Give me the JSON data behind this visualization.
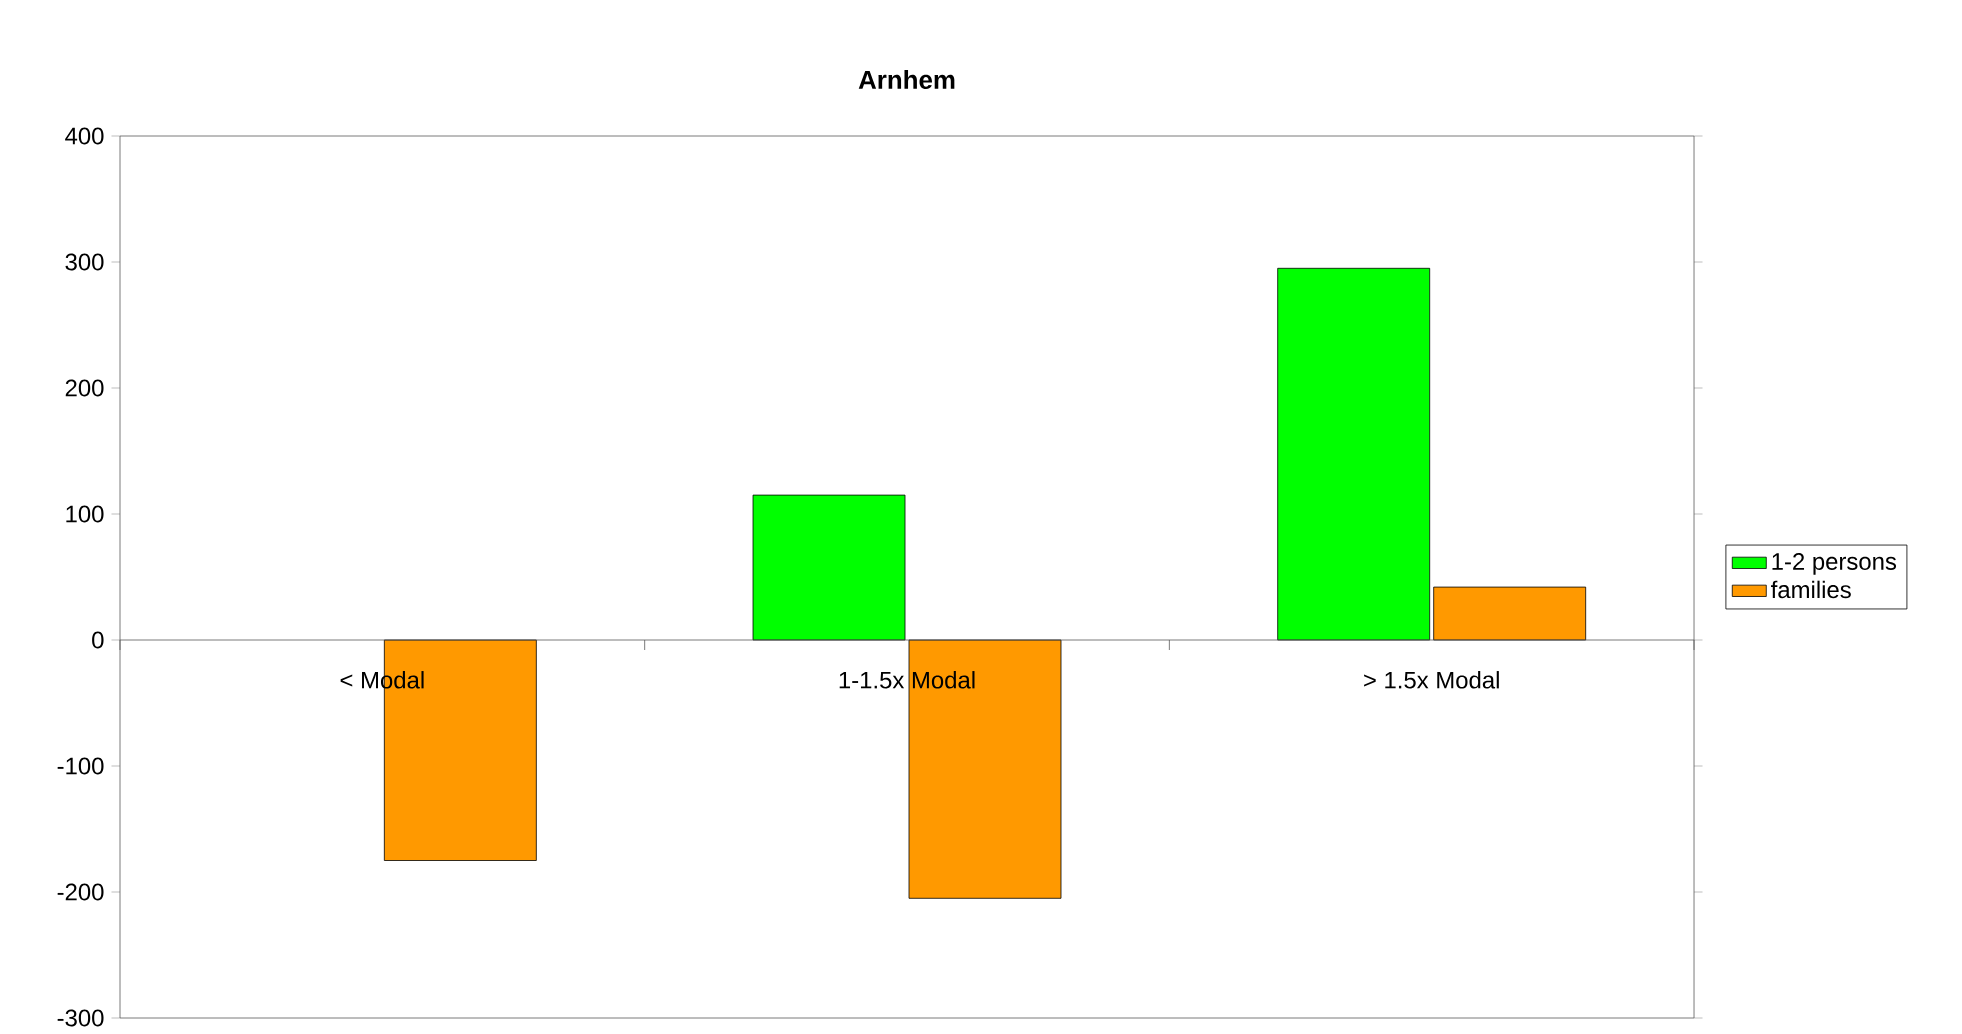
{
  "chart_data": {
    "type": "bar",
    "title": "Arnhem",
    "categories": [
      "< Modal",
      "1-1.5x Modal",
      "> 1.5x Modal"
    ],
    "series": [
      {
        "name": "1-2 persons",
        "color": "#00ff00",
        "values": [
          null,
          115,
          295
        ]
      },
      {
        "name": "families",
        "color": "#ff9900",
        "values": [
          -175,
          -205,
          42
        ]
      }
    ],
    "ylim": [
      -300,
      400
    ],
    "yticks": [
      -300,
      -200,
      -100,
      0,
      100,
      200,
      300,
      400
    ],
    "grid": false,
    "legend": "right"
  }
}
